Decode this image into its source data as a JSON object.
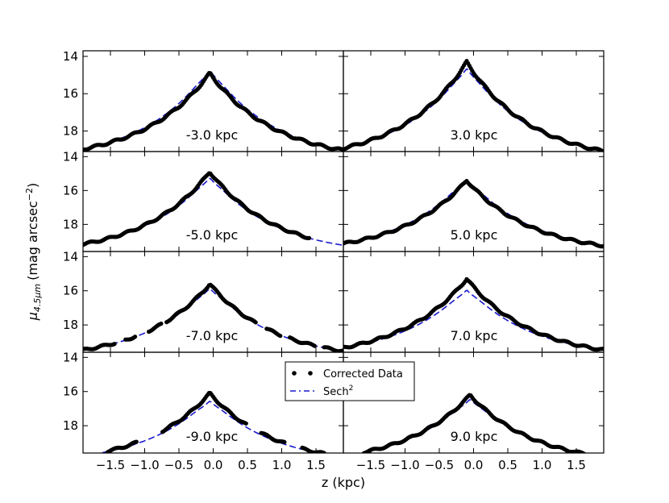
{
  "chart_data": {
    "type": "scatter",
    "layout": "4x2 small multiples, shared axes",
    "xlabel": "z (kpc)",
    "ylabel_main": "μ",
    "ylabel_sub": "4.5μm",
    "ylabel_units": "(mag arcsec",
    "ylabel_exp": "−2",
    "ylabel_close": ")",
    "xlim": [
      -1.9,
      1.9
    ],
    "x_ticks": [
      -1.5,
      -1.0,
      -0.5,
      0.0,
      0.5,
      1.0,
      1.5
    ],
    "x_tick_labels": [
      "−1.5",
      "−1.0",
      "−0.5",
      "0.0",
      "0.5",
      "1.0",
      "1.5"
    ],
    "y_ticks": [
      14,
      16,
      18
    ],
    "y_tick_labels": [
      "14",
      "16",
      "18"
    ],
    "y_inverted": true,
    "legend": {
      "placement": "bottom-center",
      "entries": [
        {
          "name": "Corrected Data",
          "style": "dots",
          "color": "#000000"
        },
        {
          "name": "Sech",
          "sup": "2",
          "style": "dashed",
          "color": "#0000cc"
        }
      ]
    },
    "colors": {
      "data": "#000000",
      "model": "#1a1acc"
    },
    "panels": [
      {
        "label": "-3.0 kpc",
        "ylim": [
          13.7,
          19.1
        ],
        "peak_x": -0.05,
        "peak_y": 14.9,
        "model_peak_y": 14.6,
        "edge_y": 19.0,
        "gaps": []
      },
      {
        "label": "3.0 kpc",
        "ylim": [
          13.7,
          19.1
        ],
        "peak_x": -0.1,
        "peak_y": 14.3,
        "model_peak_y": 14.5,
        "edge_y": 19.0,
        "gaps": []
      },
      {
        "label": "-5.0 kpc",
        "ylim": [
          13.7,
          19.6
        ],
        "peak_x": -0.05,
        "peak_y": 14.9,
        "model_peak_y": 15.1,
        "edge_y": 19.2,
        "gaps": [
          [
            1.42,
            1.9
          ]
        ]
      },
      {
        "label": "5.0 kpc",
        "ylim": [
          13.7,
          19.6
        ],
        "peak_x": -0.1,
        "peak_y": 15.4,
        "model_peak_y": 15.2,
        "edge_y": 19.2,
        "gaps": []
      },
      {
        "label": "-7.0 kpc",
        "ylim": [
          13.7,
          19.6
        ],
        "peak_x": -0.05,
        "peak_y": 15.6,
        "model_peak_y": 15.7,
        "edge_y": 19.5,
        "gaps": [
          [
            -1.42,
            -1.28
          ],
          [
            -1.12,
            -0.95
          ],
          [
            -0.75,
            -0.68
          ],
          [
            0.62,
            0.78
          ],
          [
            1.0,
            1.1
          ],
          [
            1.48,
            1.6
          ]
        ]
      },
      {
        "label": "7.0 kpc",
        "ylim": [
          13.7,
          19.6
        ],
        "peak_x": -0.1,
        "peak_y": 15.3,
        "model_peak_y": 15.8,
        "edge_y": 19.4,
        "gaps": []
      },
      {
        "label": "-9.0 kpc",
        "ylim": [
          13.7,
          19.6
        ],
        "peak_x": -0.05,
        "peak_y": 16.1,
        "model_peak_y": 16.4,
        "edge_y": 19.8,
        "gaps": [
          [
            -1.9,
            -1.55
          ],
          [
            -1.1,
            -0.75
          ],
          [
            0.5,
            0.7
          ],
          [
            1.05,
            1.3
          ],
          [
            1.62,
            1.9
          ]
        ]
      },
      {
        "label": "9.0 kpc",
        "ylim": [
          13.7,
          19.6
        ],
        "peak_x": -0.05,
        "peak_y": 16.2,
        "model_peak_y": 16.3,
        "edge_y": 19.8,
        "gaps": [
          [
            -1.9,
            -1.6
          ],
          [
            1.65,
            1.9
          ]
        ]
      }
    ]
  }
}
